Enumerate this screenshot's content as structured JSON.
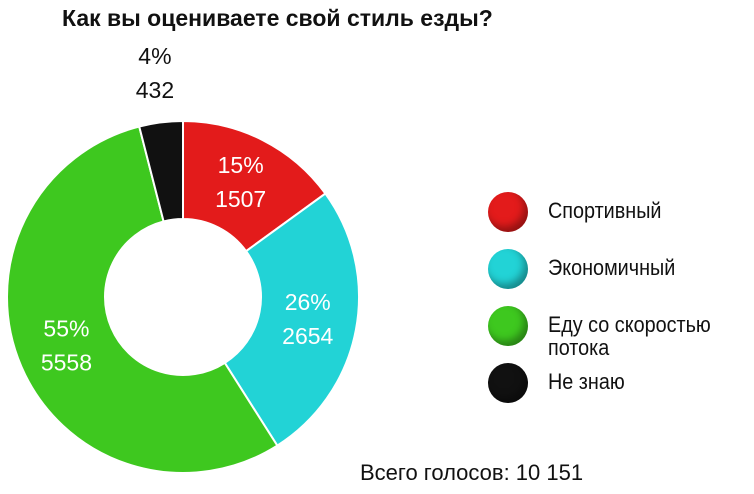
{
  "chart_data": {
    "type": "donut",
    "title": "Как вы оцениваете свой стиль езды?",
    "categories": [
      "Спортивный",
      "Экономичный",
      "Еду со скоростью потока",
      "Не знаю"
    ],
    "values": [
      15,
      26,
      55,
      4
    ],
    "value_labels": [
      "15%",
      "26%",
      "55%",
      "4%"
    ],
    "counts": [
      1507,
      2654,
      5558,
      432
    ],
    "colors": [
      "#e31b1b",
      "#22d3d6",
      "#3ec81f",
      "#111111"
    ],
    "total_label": "Всего голосов: 10 151"
  }
}
